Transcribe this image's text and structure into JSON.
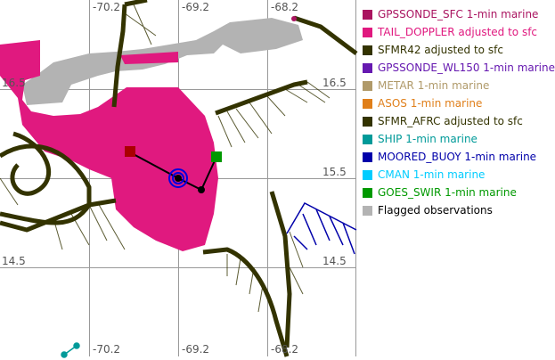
{
  "map": {
    "lon_labels": [
      "-70.2",
      "-69.2",
      "-68.2"
    ],
    "lat_labels": [
      "16.5",
      "15.5",
      "14.5"
    ]
  },
  "legend": [
    {
      "label": "GPSSONDE_SFC 1-min marine",
      "color": "#aa1460"
    },
    {
      "label": "TAIL_DOPPLER adjusted to sfc",
      "color": "#e0197f"
    },
    {
      "label": "SFMR42 adjusted to sfc",
      "color": "#333300"
    },
    {
      "label": "GPSSONDE_WL150 1-min marine",
      "color": "#6619b0"
    },
    {
      "label": "METAR 1-min marine",
      "color": "#b09a6a"
    },
    {
      "label": "ASOS 1-min marine",
      "color": "#e07f1a"
    },
    {
      "label": "SFMR_AFRC adjusted to sfc",
      "color": "#333300"
    },
    {
      "label": "SHIP 1-min marine",
      "color": "#009a99"
    },
    {
      "label": "MOORED_BUOY 1-min marine",
      "color": "#0000aa"
    },
    {
      "label": "CMAN 1-min marine",
      "color": "#00ccff"
    },
    {
      "label": "GOES_SWIR 1-min marine",
      "color": "#009900"
    },
    {
      "label": "Flagged observations",
      "color": "#b3b3b3"
    }
  ]
}
